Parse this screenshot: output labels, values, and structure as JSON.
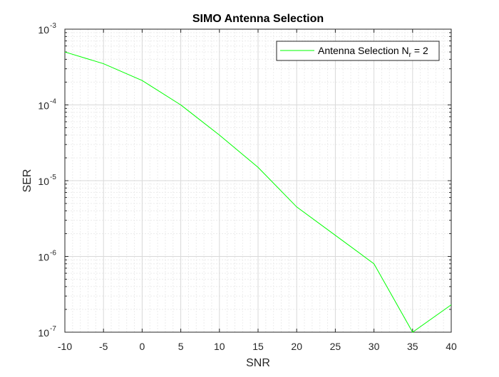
{
  "chart_data": {
    "type": "line",
    "title": "SIMO Antenna Selection",
    "xlabel": "SNR",
    "ylabel": "SER",
    "xlim": [
      -10,
      40
    ],
    "ylim": [
      1e-07,
      0.001
    ],
    "yscale": "log",
    "grid": true,
    "minor_grid": true,
    "legend_placement": "top-right",
    "x_ticks": [
      "-10",
      "-5",
      "0",
      "5",
      "10",
      "15",
      "20",
      "25",
      "30",
      "35",
      "40"
    ],
    "y_ticks": [
      {
        "base": "10",
        "exp": "-7",
        "value": 1e-07
      },
      {
        "base": "10",
        "exp": "-6",
        "value": 1e-06
      },
      {
        "base": "10",
        "exp": "-5",
        "value": 1e-05
      },
      {
        "base": "10",
        "exp": "-4",
        "value": 0.0001
      },
      {
        "base": "10",
        "exp": "-3",
        "value": 0.001
      }
    ],
    "x": [
      -10,
      -5,
      0,
      5,
      10,
      15,
      20,
      25,
      30,
      35,
      40
    ],
    "series": [
      {
        "legend_main": "Antenna Selection N",
        "legend_sub": "r",
        "legend_suffix": " = 2",
        "color": "#00ff00",
        "values": [
          0.0005,
          0.00035,
          0.00021,
          0.0001,
          4e-05,
          1.5e-05,
          4.5e-06,
          1.9e-06,
          8e-07,
          1e-07,
          2.3e-07
        ]
      }
    ]
  }
}
